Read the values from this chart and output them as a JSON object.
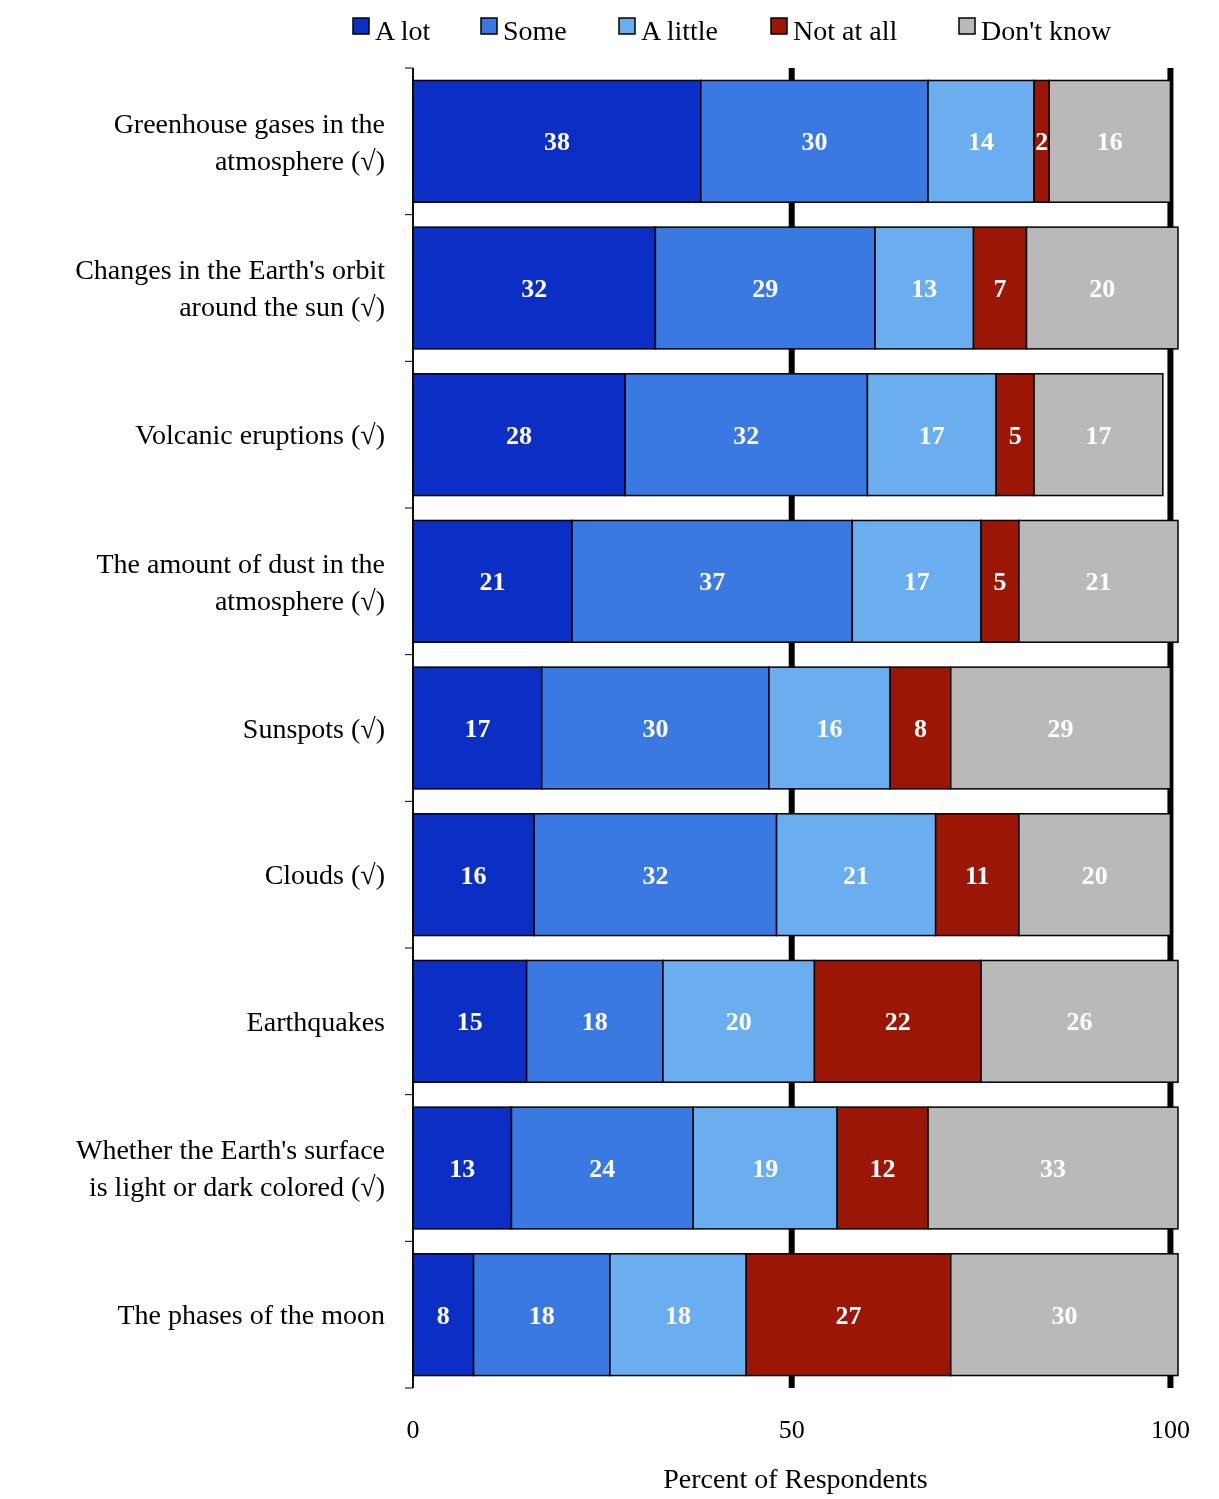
{
  "chart_data": {
    "type": "bar",
    "orientation": "horizontal",
    "stacked": true,
    "xlabel": "Percent of  Respondents",
    "categories": [
      "Greenhouse gases in the atmosphere (√)",
      "Changes in the Earth's orbit around the sun (√)",
      "Volcanic eruptions (√)",
      "The amount of  dust in the atmosphere (√)",
      "Sunspots (√)",
      "Clouds (√)",
      "Earthquakes",
      "Whether the Earth's surface is light or dark colored (√)",
      "The phases of  the moon"
    ],
    "series": [
      {
        "name": "A lot",
        "color": "#0b2ec4",
        "values": [
          38,
          32,
          28,
          21,
          17,
          16,
          15,
          13,
          8
        ]
      },
      {
        "name": "Some",
        "color": "#3b79e2",
        "values": [
          30,
          29,
          32,
          37,
          30,
          32,
          18,
          24,
          18
        ]
      },
      {
        "name": "A little",
        "color": "#6aaef0",
        "values": [
          14,
          13,
          17,
          17,
          16,
          21,
          20,
          19,
          18
        ]
      },
      {
        "name": "Not at all",
        "color": "#9c1606",
        "values": [
          2,
          7,
          5,
          5,
          8,
          11,
          22,
          12,
          27
        ]
      },
      {
        "name": "Don't know",
        "color": "#b9b9b9",
        "values": [
          16,
          20,
          17,
          21,
          29,
          20,
          26,
          33,
          30
        ]
      }
    ],
    "xlim": [
      0,
      101
    ],
    "xticks": [
      0,
      50,
      100
    ],
    "grid": "x",
    "legend": "top",
    "data_labels": true
  }
}
